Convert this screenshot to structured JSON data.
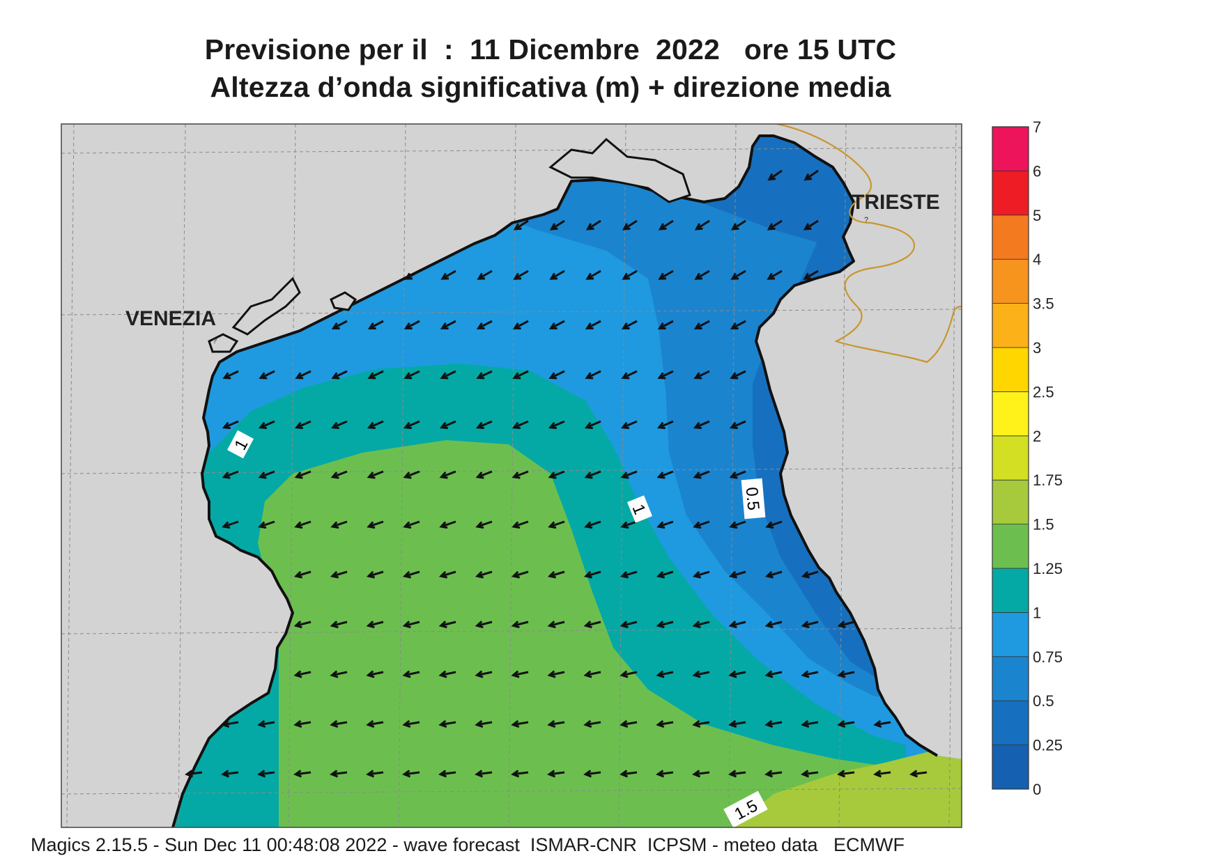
{
  "title_line1": "Previsione per il  :  11 Dicembre  2022   ore 15 UTC",
  "title_line2": "Altezza d’onda significativa (m) + direzione media",
  "map": {
    "cities": [
      {
        "name": "VENEZIA"
      },
      {
        "name": "TRIESTE"
      }
    ],
    "contour_labels": [
      "1",
      "1",
      "0.5",
      "1.5"
    ],
    "colors": {
      "land": "#d3d3d3",
      "coast": "#111111",
      "border": "#c8962e",
      "grid": "#8a8a8a",
      "arrow": "#111111"
    },
    "arrow_direction": "toward south-west"
  },
  "legend": {
    "levels": [
      {
        "label": "0",
        "color": "#1560b0"
      },
      {
        "label": "0.25",
        "color": "#1670bf"
      },
      {
        "label": "0.5",
        "color": "#1b84cf"
      },
      {
        "label": "0.75",
        "color": "#1f9ae0"
      },
      {
        "label": "1",
        "color": "#04a9a6"
      },
      {
        "label": "1.25",
        "color": "#6cbf4f"
      },
      {
        "label": "1.5",
        "color": "#a6ca3c"
      },
      {
        "label": "1.75",
        "color": "#d3df22"
      },
      {
        "label": "2",
        "color": "#fff21b"
      },
      {
        "label": "2.5",
        "color": "#ffd600"
      },
      {
        "label": "3",
        "color": "#fbb117"
      },
      {
        "label": "3.5",
        "color": "#f7941d"
      },
      {
        "label": "4",
        "color": "#f47a20"
      },
      {
        "label": "5",
        "color": "#ee1c24"
      },
      {
        "label": "6",
        "color": "#ed145b"
      },
      {
        "label": "7",
        "color": ""
      }
    ]
  },
  "footer": "Magics 2.15.5 - Sun Dec 11 00:48:08 2022 - wave forecast  ISMAR-CNR  ICPSM - meteo data   ECMWF"
}
